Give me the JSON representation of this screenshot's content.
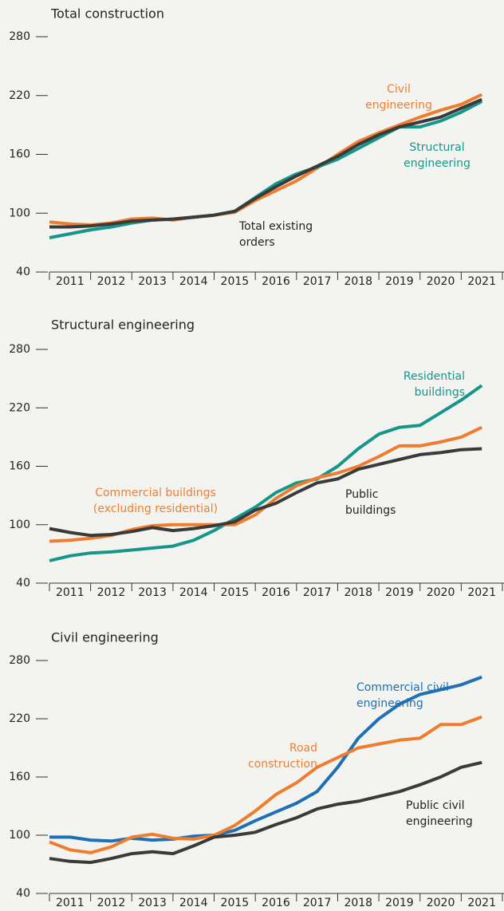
{
  "chart_data": [
    {
      "type": "line",
      "title": "Total construction",
      "x": [
        2011,
        2011.5,
        2012,
        2012.5,
        2013,
        2013.5,
        2014,
        2014.5,
        2015,
        2015.5,
        2016,
        2016.5,
        2017,
        2017.5,
        2018,
        2018.5,
        2019,
        2019.5,
        2020,
        2020.5,
        2021,
        2021.5
      ],
      "xlim": [
        2011,
        2022
      ],
      "xticks": [
        2011,
        2012,
        2013,
        2014,
        2015,
        2016,
        2017,
        2018,
        2019,
        2020,
        2021,
        2022
      ],
      "xlabels": [
        "2011",
        "2012",
        "2013",
        "2014",
        "2015",
        "2016",
        "2017",
        "2018",
        "2019",
        "2020",
        "2021"
      ],
      "ylim": [
        40,
        280
      ],
      "yticks": [
        40,
        100,
        160,
        220,
        280
      ],
      "series": [
        {
          "name": [
            "Civil",
            "engineering"
          ],
          "color": "#f07d2f",
          "values": [
            91,
            89,
            88,
            90,
            94,
            95,
            93,
            96,
            98,
            101,
            113,
            123,
            133,
            146,
            160,
            173,
            182,
            190,
            198,
            205,
            211,
            221
          ]
        },
        {
          "name": [
            "Structural",
            "engineering"
          ],
          "color": "#16968a",
          "values": [
            75,
            79,
            83,
            86,
            90,
            93,
            94,
            96,
            98,
            102,
            116,
            130,
            140,
            147,
            155,
            166,
            177,
            188,
            188,
            194,
            203,
            214
          ]
        },
        {
          "name": [
            "Total existing",
            "orders"
          ],
          "color": "#3a3a3a",
          "values": [
            86,
            86,
            87,
            89,
            92,
            93,
            94,
            96,
            98,
            102,
            115,
            127,
            138,
            148,
            158,
            170,
            180,
            188,
            193,
            198,
            207,
            216
          ]
        }
      ]
    },
    {
      "type": "line",
      "title": "Structural engineering",
      "x": [
        2011,
        2011.5,
        2012,
        2012.5,
        2013,
        2013.5,
        2014,
        2014.5,
        2015,
        2015.5,
        2016,
        2016.5,
        2017,
        2017.5,
        2018,
        2018.5,
        2019,
        2019.5,
        2020,
        2020.5,
        2021,
        2021.5
      ],
      "xlim": [
        2011,
        2022
      ],
      "xticks": [
        2011,
        2012,
        2013,
        2014,
        2015,
        2016,
        2017,
        2018,
        2019,
        2020,
        2021,
        2022
      ],
      "xlabels": [
        "2011",
        "2012",
        "2013",
        "2014",
        "2015",
        "2016",
        "2017",
        "2018",
        "2019",
        "2020",
        "2021"
      ],
      "ylim": [
        40,
        280
      ],
      "yticks": [
        40,
        100,
        160,
        220,
        280
      ],
      "series": [
        {
          "name": [
            "Residential",
            "buildings"
          ],
          "color": "#16968a",
          "values": [
            63,
            68,
            71,
            72,
            74,
            76,
            78,
            84,
            94,
            106,
            118,
            133,
            143,
            147,
            160,
            178,
            193,
            200,
            202,
            215,
            228,
            243
          ]
        },
        {
          "name": [
            "Commercial buildings",
            "(excluding residential)"
          ],
          "color": "#f07d2f",
          "values": [
            83,
            84,
            86,
            89,
            95,
            99,
            100,
            100,
            100,
            100,
            110,
            127,
            140,
            148,
            153,
            160,
            170,
            181,
            181,
            185,
            190,
            200
          ]
        },
        {
          "name": [
            "Public",
            "buildings"
          ],
          "color": "#3a3a3a",
          "values": [
            96,
            92,
            89,
            90,
            93,
            97,
            94,
            96,
            99,
            103,
            115,
            122,
            133,
            143,
            147,
            157,
            162,
            167,
            172,
            174,
            177,
            178
          ]
        }
      ]
    },
    {
      "type": "line",
      "title": "Civil engineering",
      "x": [
        2011,
        2011.5,
        2012,
        2012.5,
        2013,
        2013.5,
        2014,
        2014.5,
        2015,
        2015.5,
        2016,
        2016.5,
        2017,
        2017.5,
        2018,
        2018.5,
        2019,
        2019.5,
        2020,
        2020.5,
        2021,
        2021.5
      ],
      "xlim": [
        2011,
        2022
      ],
      "xticks": [
        2011,
        2012,
        2013,
        2014,
        2015,
        2016,
        2017,
        2018,
        2019,
        2020,
        2021,
        2022
      ],
      "xlabels": [
        "2011",
        "2012",
        "2013",
        "2014",
        "2015",
        "2016",
        "2017",
        "2018",
        "2019",
        "2020",
        "2021"
      ],
      "ylim": [
        40,
        280
      ],
      "yticks": [
        40,
        100,
        160,
        220,
        280
      ],
      "series": [
        {
          "name": [
            "Commercial civil",
            "engineering"
          ],
          "color": "#1f6fb4",
          "values": [
            98,
            98,
            95,
            94,
            97,
            95,
            96,
            99,
            100,
            105,
            115,
            124,
            133,
            145,
            170,
            200,
            220,
            235,
            245,
            250,
            255,
            263
          ]
        },
        {
          "name": [
            "Road",
            "construction"
          ],
          "color": "#f07d2f",
          "values": [
            93,
            85,
            82,
            88,
            98,
            101,
            97,
            96,
            100,
            110,
            125,
            142,
            154,
            170,
            180,
            190,
            194,
            198,
            200,
            214,
            214,
            222
          ]
        },
        {
          "name": [
            "Public civil",
            "engineering"
          ],
          "color": "#3a3a3a",
          "values": [
            76,
            73,
            72,
            76,
            81,
            83,
            81,
            89,
            98,
            100,
            103,
            111,
            118,
            127,
            132,
            135,
            140,
            145,
            152,
            160,
            170,
            175
          ]
        }
      ]
    }
  ]
}
